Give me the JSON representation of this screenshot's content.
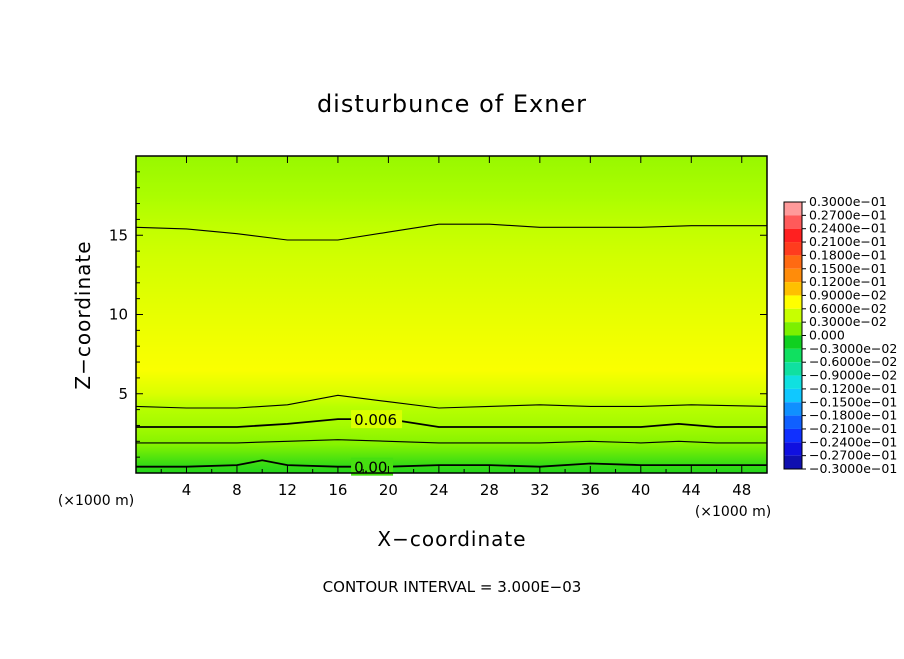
{
  "chart_data": {
    "type": "heatmap",
    "title": "disturbunce of Exner",
    "xlabel": "X−coordinate",
    "ylabel": "Z−coordinate",
    "x_unit": "(×1000 m)",
    "y_unit": "(×1000 m)",
    "xlim": [
      0,
      50
    ],
    "ylim": [
      0,
      20
    ],
    "x_ticks": [
      4,
      8,
      12,
      16,
      20,
      24,
      28,
      32,
      36,
      40,
      44,
      48
    ],
    "y_ticks": [
      5,
      10,
      15
    ],
    "footer": "CONTOUR INTERVAL = 3.000E−03",
    "contour_interval": 0.003,
    "colorbar": {
      "labels": [
        "0.3000e−01",
        "0.2700e−01",
        "0.2400e−01",
        "0.2100e−01",
        "0.1800e−01",
        "0.1500e−01",
        "0.1200e−01",
        "0.9000e−02",
        "0.6000e−02",
        "0.3000e−02",
        "0.000",
        "−0.3000e−02",
        "−0.6000e−02",
        "−0.9000e−02",
        "−0.1200e−01",
        "−0.1500e−01",
        "−0.1800e−01",
        "−0.2100e−01",
        "−0.2400e−01",
        "−0.2700e−01",
        "−0.3000e−01"
      ],
      "colors": [
        "#ff9a9a",
        "#ff5a5a",
        "#ff2020",
        "#ff3c1e",
        "#ff6a12",
        "#ff8c0a",
        "#ffc000",
        "#ffff00",
        "#c8ff00",
        "#7cf000",
        "#10d020",
        "#10e060",
        "#10e0a0",
        "#10e0e0",
        "#10c8ff",
        "#1090ff",
        "#1060ff",
        "#1030ff",
        "#1010e0",
        "#1010b0",
        "#7010b0"
      ]
    },
    "fill_bands": [
      {
        "z": 20.0,
        "value": 0.0045
      },
      {
        "z": 17.5,
        "value": 0.0055
      },
      {
        "z": 15.5,
        "value": 0.0065
      },
      {
        "z": 13.5,
        "value": 0.0072
      },
      {
        "z": 11.0,
        "value": 0.0078
      },
      {
        "z": 8.0,
        "value": 0.0085
      },
      {
        "z": 6.5,
        "value": 0.0088
      },
      {
        "z": 5.0,
        "value": 0.0075
      },
      {
        "z": 4.2,
        "value": 0.0062
      },
      {
        "z": 3.0,
        "value": 0.0052
      },
      {
        "z": 1.8,
        "value": 0.0035
      },
      {
        "z": 0.6,
        "value": 0.0012
      },
      {
        "z": 0.0,
        "value": 0.0005
      }
    ],
    "contours": [
      {
        "value": 0.009,
        "label": "",
        "points": [
          [
            0,
            15.5
          ],
          [
            4,
            15.4
          ],
          [
            8,
            15.1
          ],
          [
            12,
            14.7
          ],
          [
            16,
            14.7
          ],
          [
            20,
            15.2
          ],
          [
            24,
            15.7
          ],
          [
            28,
            15.7
          ],
          [
            32,
            15.5
          ],
          [
            36,
            15.5
          ],
          [
            40,
            15.5
          ],
          [
            44,
            15.6
          ],
          [
            50,
            15.6
          ]
        ]
      },
      {
        "value": 0.006,
        "label": "",
        "points": [
          [
            0,
            4.2
          ],
          [
            4,
            4.1
          ],
          [
            8,
            4.1
          ],
          [
            12,
            4.3
          ],
          [
            16,
            4.9
          ],
          [
            20,
            4.5
          ],
          [
            24,
            4.1
          ],
          [
            28,
            4.2
          ],
          [
            32,
            4.3
          ],
          [
            36,
            4.2
          ],
          [
            40,
            4.2
          ],
          [
            44,
            4.3
          ],
          [
            50,
            4.2
          ]
        ]
      },
      {
        "value": 0.006,
        "label": "0.006",
        "points": [
          [
            0,
            2.9
          ],
          [
            8,
            2.9
          ],
          [
            12,
            3.1
          ],
          [
            16,
            3.4
          ],
          [
            20,
            3.4
          ],
          [
            24,
            2.9
          ],
          [
            28,
            2.9
          ],
          [
            32,
            2.9
          ],
          [
            36,
            2.9
          ],
          [
            40,
            2.9
          ],
          [
            43,
            3.1
          ],
          [
            46,
            2.9
          ],
          [
            50,
            2.9
          ]
        ]
      },
      {
        "value": 0.003,
        "label": "",
        "points": [
          [
            0,
            1.9
          ],
          [
            8,
            1.9
          ],
          [
            12,
            2.0
          ],
          [
            16,
            2.1
          ],
          [
            20,
            2.0
          ],
          [
            24,
            1.9
          ],
          [
            28,
            1.9
          ],
          [
            32,
            1.9
          ],
          [
            36,
            2.0
          ],
          [
            40,
            1.9
          ],
          [
            43,
            2.0
          ],
          [
            46,
            1.9
          ],
          [
            50,
            1.9
          ]
        ]
      },
      {
        "value": 0.0,
        "label": "0.00",
        "points": [
          [
            0,
            0.4
          ],
          [
            4,
            0.4
          ],
          [
            8,
            0.5
          ],
          [
            10,
            0.8
          ],
          [
            12,
            0.5
          ],
          [
            16,
            0.4
          ],
          [
            20,
            0.4
          ],
          [
            24,
            0.5
          ],
          [
            28,
            0.5
          ],
          [
            32,
            0.4
          ],
          [
            36,
            0.6
          ],
          [
            40,
            0.5
          ],
          [
            44,
            0.5
          ],
          [
            50,
            0.5
          ]
        ]
      }
    ]
  }
}
